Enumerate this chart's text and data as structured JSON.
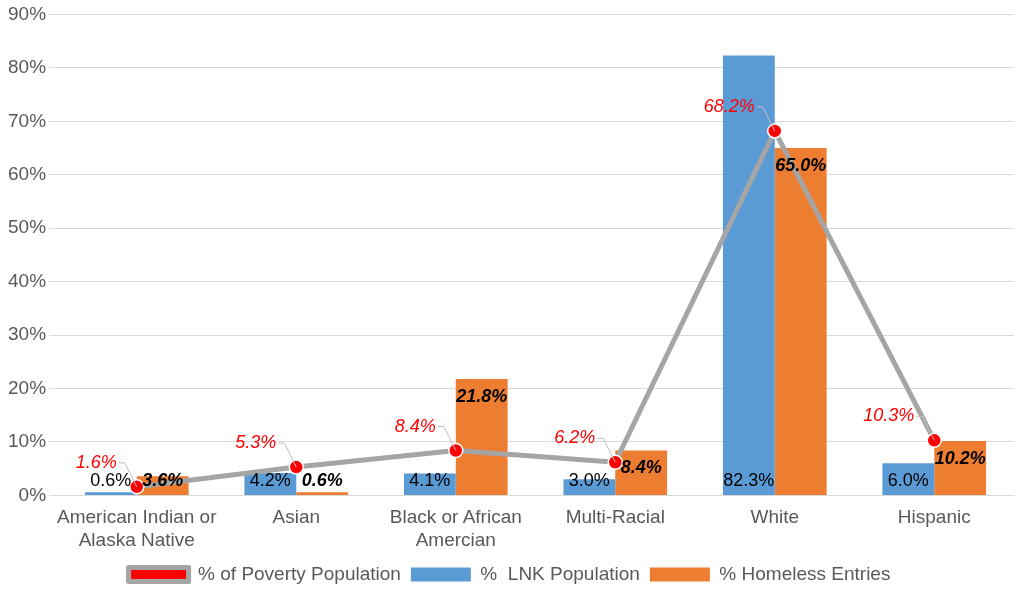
{
  "chart_data": {
    "type": "bar",
    "categories": [
      "American Indian or Alaska Native",
      "Asian",
      "Black or African Amercian",
      "Multi-Racial",
      "White",
      "Hispanic"
    ],
    "series": [
      {
        "name": "%  LNK Population",
        "color": "#5b9bd5",
        "values": [
          0.6,
          4.2,
          4.1,
          3.0,
          82.3,
          6.0
        ],
        "value_labels": [
          "0.6%",
          "4.2%",
          "4.1%",
          "3.0%",
          "82.3%",
          "6.0%"
        ]
      },
      {
        "name": "% Homeless Entries",
        "color": "#ed7d31",
        "values": [
          3.6,
          0.6,
          21.8,
          8.4,
          65.0,
          10.2
        ],
        "value_labels": [
          "3.6%",
          "0.6%",
          "21.8%",
          "8.4%",
          "65.0%",
          "10.2%"
        ]
      },
      {
        "name": "% of Poverty Population",
        "type": "line",
        "color": "#a5a5a5",
        "values": [
          1.6,
          5.3,
          8.4,
          6.2,
          68.2,
          10.3
        ],
        "value_labels": [
          "1.6%",
          "5.3%",
          "8.4%",
          "6.2%",
          "68.2%",
          "10.3%"
        ]
      }
    ],
    "ylim": [
      0,
      90
    ],
    "yticks": [
      {
        "value": 0,
        "label": "0%"
      },
      {
        "value": 10,
        "label": "10%"
      },
      {
        "value": 20,
        "label": "20%"
      },
      {
        "value": 30,
        "label": "30%"
      },
      {
        "value": 40,
        "label": "40%"
      },
      {
        "value": 50,
        "label": "50%"
      },
      {
        "value": 60,
        "label": "60%"
      },
      {
        "value": 70,
        "label": "70%"
      },
      {
        "value": 80,
        "label": "80%"
      },
      {
        "value": 90,
        "label": "90%"
      }
    ],
    "grid": "y",
    "legend": "bottom",
    "marker": "circle"
  }
}
